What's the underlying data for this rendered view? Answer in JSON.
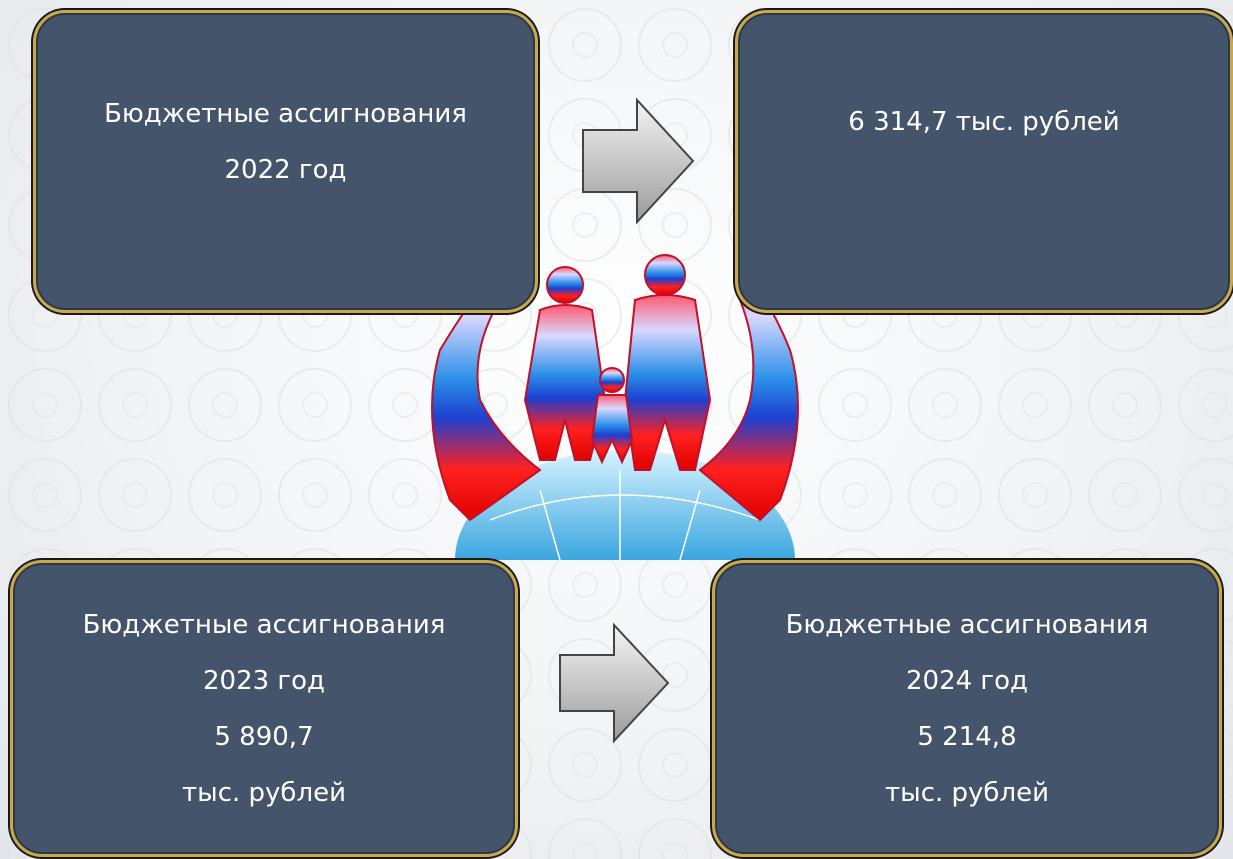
{
  "boxes": [
    {
      "lines": [
        "Бюджетные ассигнования",
        "2022 год"
      ]
    },
    {
      "lines": [
        "6 314,7 тыс. рублей"
      ]
    },
    {
      "lines": [
        "Бюджетные ассигнования",
        "2023 год",
        "5 890,7",
        "тыс. рублей"
      ]
    },
    {
      "lines": [
        "Бюджетные ассигнования",
        "2024 год",
        "5 214,8",
        "тыс. рублей"
      ]
    }
  ]
}
